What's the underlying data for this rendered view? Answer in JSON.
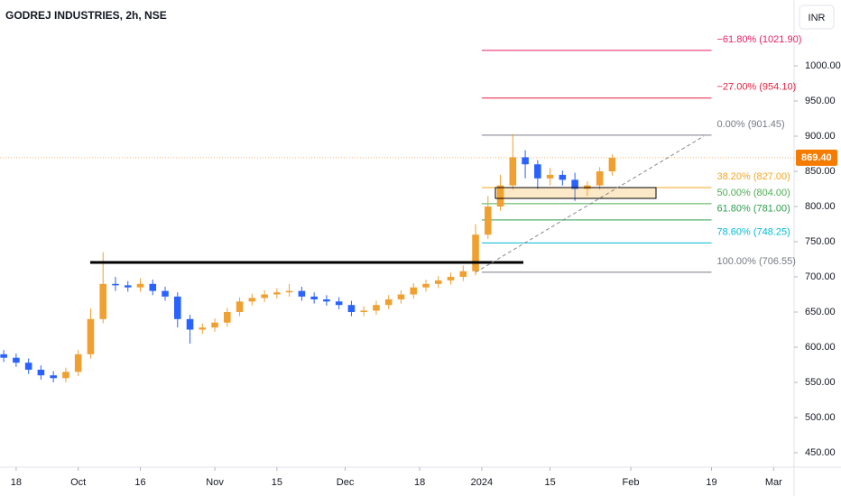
{
  "chart_data": {
    "type": "candlestick",
    "title": "GODREJ INDUSTRIES, 2h, NSE",
    "currency": "INR",
    "up_color": "#f0a030",
    "down_color": "#2962ff",
    "x": [
      -2,
      0,
      2,
      4,
      6,
      8,
      10,
      12,
      14,
      16,
      18,
      20,
      22,
      24,
      26,
      28,
      30,
      32,
      34,
      36,
      38,
      40,
      42,
      44,
      46,
      48,
      50,
      52,
      54,
      56,
      58,
      60,
      62,
      64,
      66,
      68,
      70,
      72,
      74,
      76,
      78,
      80,
      82,
      84,
      86,
      88,
      90,
      92,
      94,
      96
    ],
    "open": [
      590,
      585,
      578,
      568,
      560,
      556,
      565,
      590,
      640,
      690,
      688,
      685,
      690,
      680,
      672,
      640,
      625,
      628,
      635,
      650,
      665,
      670,
      675,
      678,
      680,
      672,
      668,
      665,
      660,
      650,
      652,
      660,
      668,
      675,
      685,
      690,
      695,
      700,
      708,
      760,
      800,
      830,
      870,
      860,
      840,
      845,
      838,
      825,
      830,
      850
    ],
    "high": [
      596,
      591,
      584,
      574,
      566,
      571,
      596,
      655,
      735,
      700,
      694,
      698,
      696,
      686,
      678,
      646,
      634,
      641,
      656,
      671,
      676,
      681,
      684,
      690,
      686,
      678,
      674,
      671,
      666,
      658,
      666,
      674,
      681,
      691,
      696,
      701,
      706,
      716,
      775,
      815,
      845,
      903,
      880,
      866,
      855,
      851,
      848,
      836,
      856,
      874
    ],
    "low": [
      579,
      572,
      562,
      554,
      550,
      550,
      559,
      584,
      634,
      680,
      679,
      679,
      674,
      666,
      628,
      605,
      619,
      622,
      629,
      644,
      659,
      664,
      669,
      672,
      666,
      662,
      659,
      654,
      644,
      644,
      646,
      654,
      662,
      669,
      679,
      684,
      689,
      694,
      702,
      754,
      794,
      824,
      840,
      825,
      830,
      830,
      808,
      815,
      824,
      844
    ],
    "close": [
      585,
      578,
      568,
      560,
      556,
      565,
      590,
      640,
      690,
      688,
      685,
      690,
      680,
      672,
      640,
      625,
      628,
      635,
      650,
      665,
      670,
      675,
      678,
      680,
      672,
      668,
      665,
      660,
      650,
      652,
      660,
      668,
      675,
      685,
      690,
      695,
      700,
      708,
      760,
      800,
      830,
      870,
      860,
      840,
      845,
      838,
      825,
      830,
      850,
      869.4
    ],
    "last_price": {
      "value": 869.4,
      "label": "869.40"
    },
    "last_price_color": "#f57c00",
    "xlim": [
      -2.6,
      125.3
    ],
    "xticks": [
      {
        "value": 0,
        "label": "18"
      },
      {
        "value": 10,
        "label": "Oct"
      },
      {
        "value": 20,
        "label": "16"
      },
      {
        "value": 32,
        "label": "Nov"
      },
      {
        "value": 42,
        "label": "15"
      },
      {
        "value": 53,
        "label": "Dec"
      },
      {
        "value": 65,
        "label": "18"
      },
      {
        "value": 75,
        "label": "2024"
      },
      {
        "value": 86,
        "label": "15"
      },
      {
        "value": 99,
        "label": "Feb"
      },
      {
        "value": 112,
        "label": "19"
      },
      {
        "value": 122,
        "label": "Mar"
      }
    ],
    "ylim": [
      429.5,
      1093.6
    ],
    "yticks": [
      {
        "value": 450,
        "label": "450.00"
      },
      {
        "value": 500,
        "label": "500.00"
      },
      {
        "value": 550,
        "label": "550.00"
      },
      {
        "value": 600,
        "label": "600.00"
      },
      {
        "value": 650,
        "label": "650.00"
      },
      {
        "value": 700,
        "label": "700.00"
      },
      {
        "value": 750,
        "label": "750.00"
      },
      {
        "value": 800,
        "label": "800.00"
      },
      {
        "value": 850,
        "label": "850.00"
      },
      {
        "value": 900,
        "label": "900.00"
      },
      {
        "value": 950,
        "label": "950.00"
      },
      {
        "value": 1000,
        "label": "1000.00"
      }
    ],
    "fib_levels": [
      {
        "label": "−61.80% (1021.90)",
        "value": 1021.9,
        "color": "#e91e63"
      },
      {
        "label": "−27.00% (954.10)",
        "value": 954.1,
        "color": "#e91e3c"
      },
      {
        "label": "0.00% (901.45)",
        "value": 901.45,
        "color": "#787b86"
      },
      {
        "label": "38.20% (827.00)",
        "value": 827,
        "color": "#f5a623"
      },
      {
        "label": "50.00% (804.00)",
        "value": 804,
        "color": "#4caf50"
      },
      {
        "label": "61.80% (781.00)",
        "value": 781,
        "color": "#2e9e4f"
      },
      {
        "label": "78.60% (748.25)",
        "value": 748.25,
        "color": "#00bcd4"
      },
      {
        "label": "100.00% (706.55)",
        "value": 706.55,
        "color": "#787b86"
      }
    ]
  }
}
